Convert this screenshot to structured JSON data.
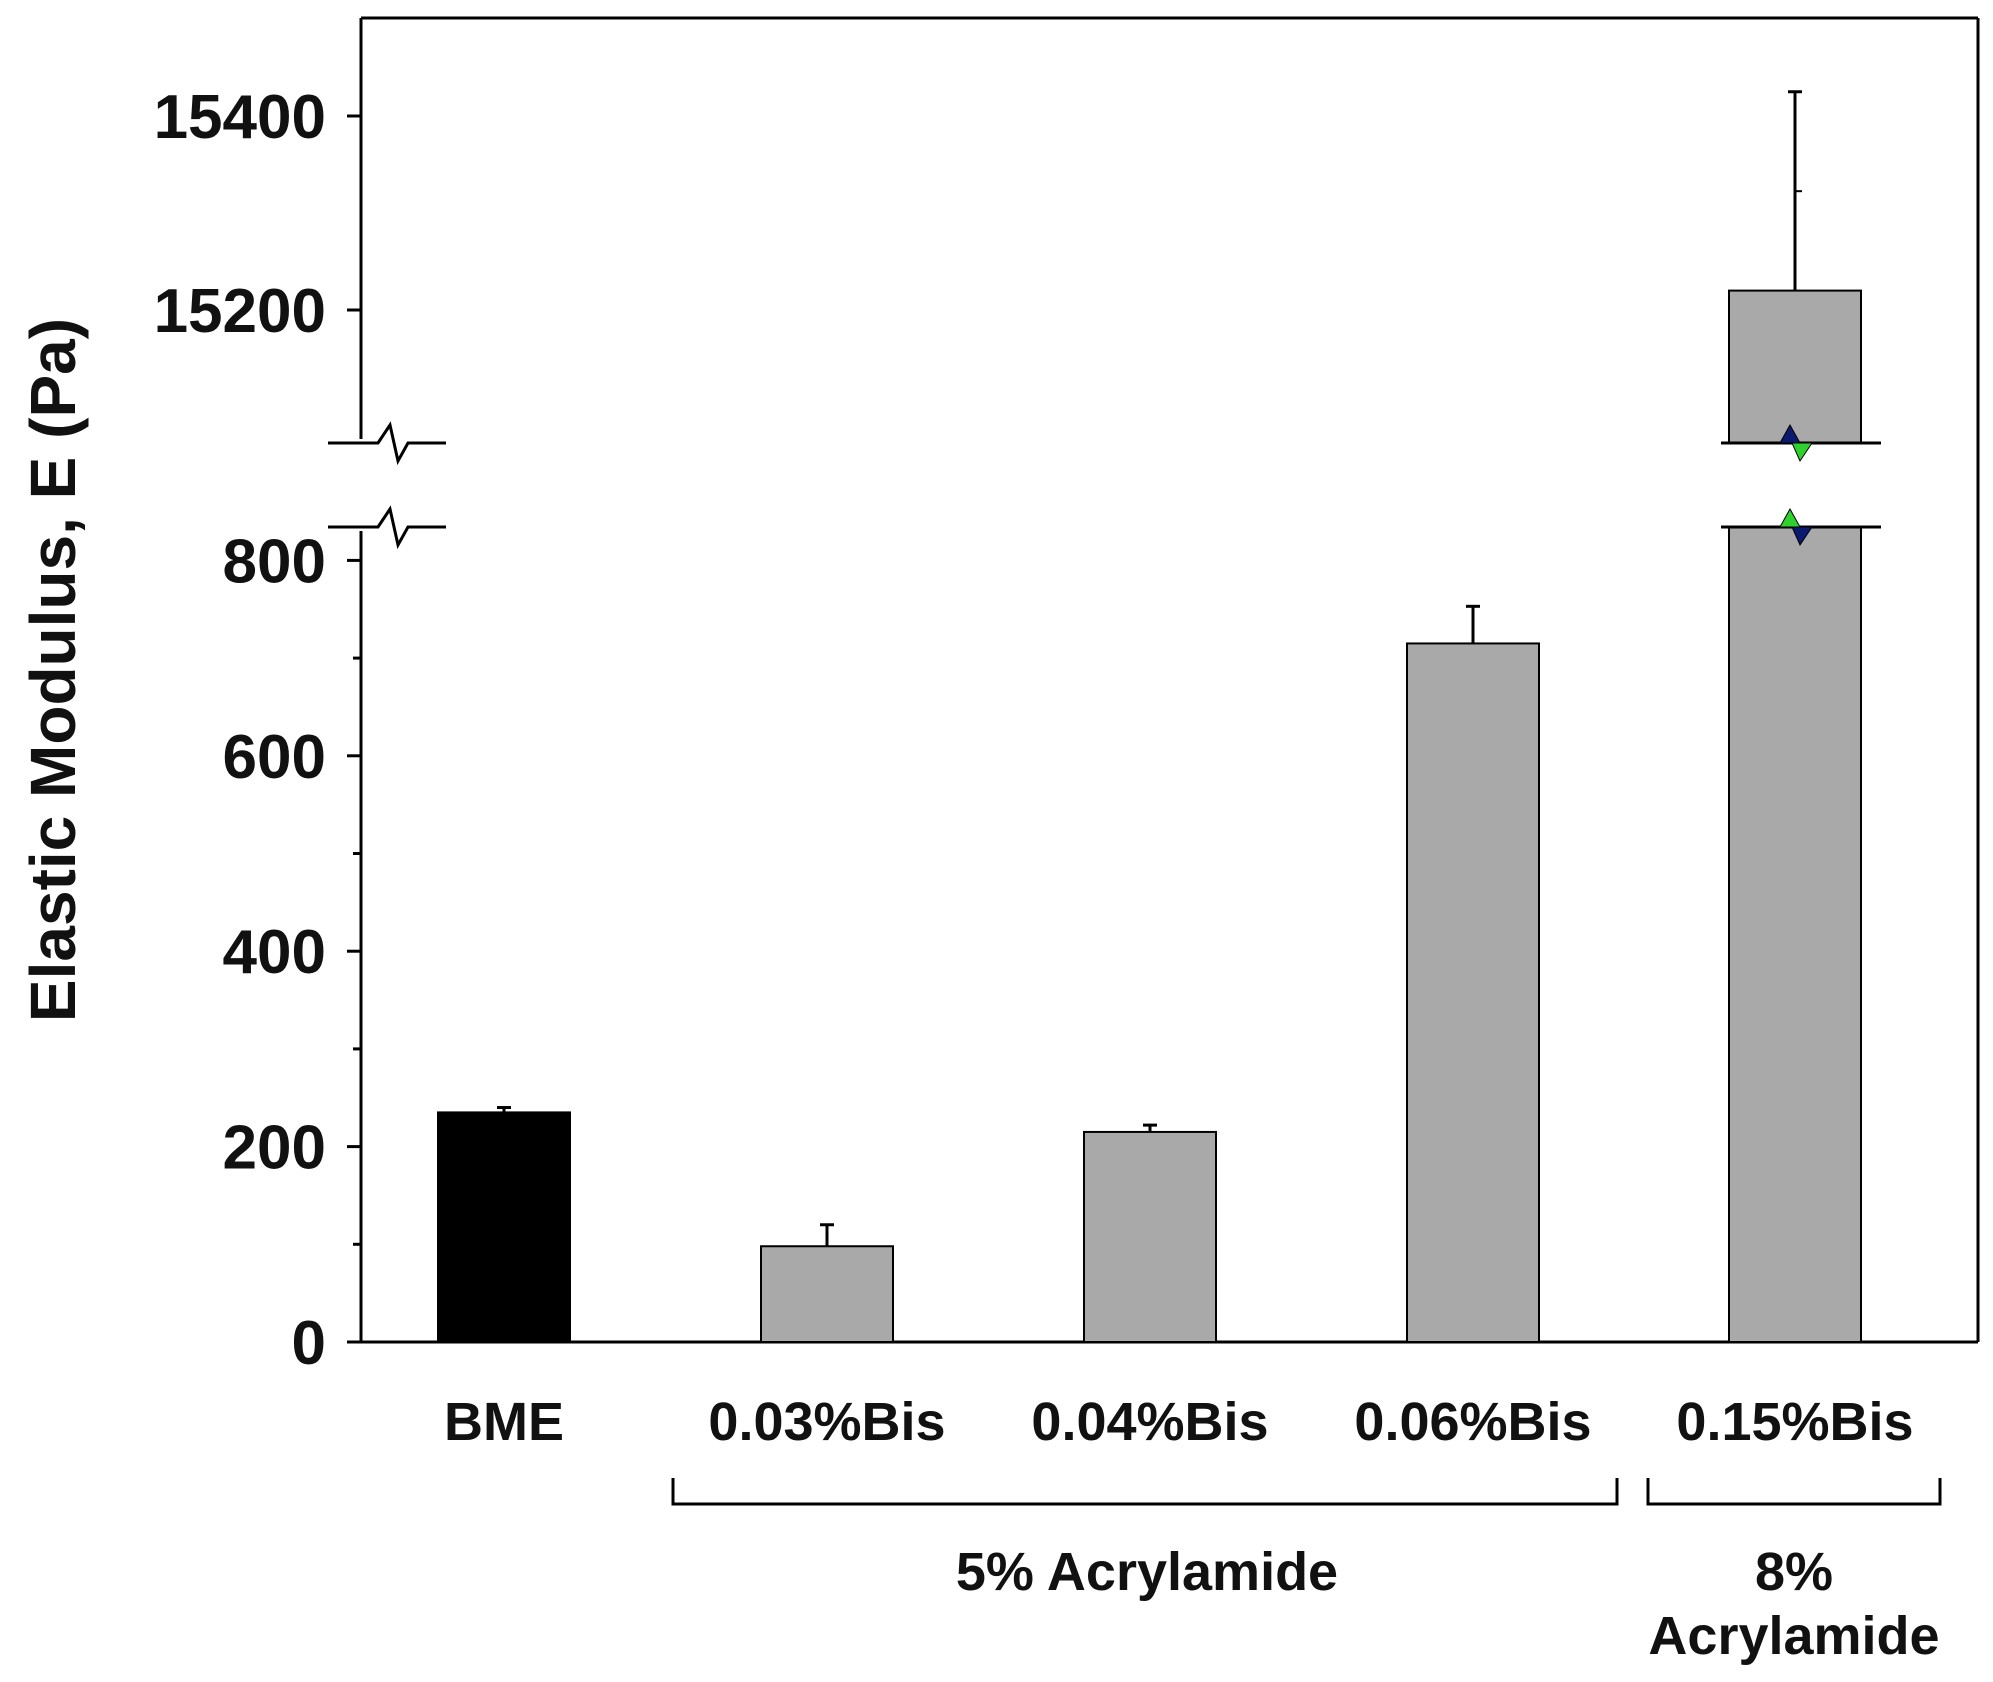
{
  "chart_data": {
    "type": "bar",
    "title": "",
    "xlabel": "",
    "ylabel": "Elastic Modulus, E (Pa)",
    "axis_break": {
      "lower_range": [
        0,
        820
      ],
      "upper_range": [
        15070,
        15500
      ]
    },
    "y_ticks_lower": [
      0,
      200,
      400,
      600,
      800
    ],
    "y_ticks_upper": [
      15200,
      15400
    ],
    "grid": false,
    "legend": "none",
    "categories": [
      "BME",
      "0.03%Bis",
      "0.04%Bis",
      "0.06%Bis",
      "0.15%Bis"
    ],
    "values": [
      235,
      98,
      215,
      715,
      15220
    ],
    "errors": [
      5,
      22,
      7,
      38,
      205
    ],
    "bar_colors": [
      "#000000",
      "#a9a9a9",
      "#a9a9a9",
      "#a9a9a9",
      "#a9a9a9"
    ],
    "groups": [
      {
        "label": "5% Acrylamide",
        "members": [
          "0.03%Bis",
          "0.04%Bis",
          "0.06%Bis"
        ]
      },
      {
        "label_lines": [
          "8%",
          "Acrylamide"
        ],
        "members": [
          "0.15%Bis"
        ]
      }
    ],
    "break_marker_colors": [
      "#0b1a6e",
      "#2fd12f"
    ]
  }
}
